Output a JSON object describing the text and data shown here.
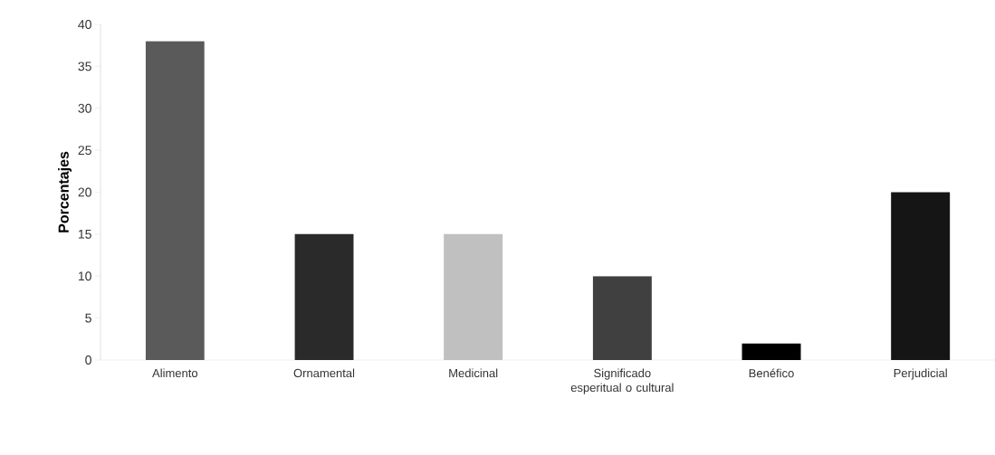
{
  "chart_data": {
    "type": "bar",
    "ylabel": "Porcentajes",
    "categories": [
      "Alimento",
      "Ornamental",
      "Medicinal",
      "Significado esperitual o cultural",
      "Benéfico",
      "Perjudicial"
    ],
    "values": [
      38,
      15,
      15,
      10,
      2,
      20
    ],
    "colors": [
      "#5a5a5a",
      "#2a2a2a",
      "#c0c0c0",
      "#404040",
      "#000000",
      "#151515"
    ],
    "ylim": [
      0,
      40
    ],
    "yticks": [
      0,
      5,
      10,
      15,
      20,
      25,
      30,
      35,
      40
    ],
    "grid": false
  }
}
